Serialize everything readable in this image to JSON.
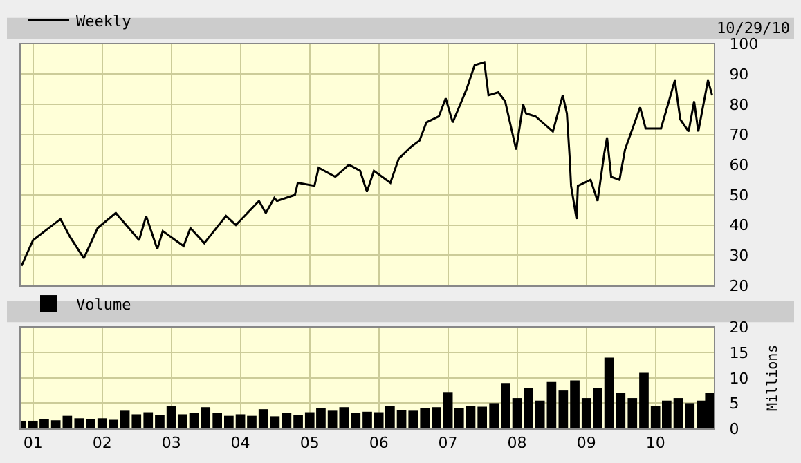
{
  "chart_data": [
    {
      "type": "line",
      "legend": "top left",
      "grid": true,
      "tick_labels": "y",
      "annotations": [
        "10/29/10"
      ],
      "x": [
        "2000-11-01",
        "2001-01-01",
        "2001-05-26",
        "2001-07-16",
        "2001-09-26",
        "2001-12-08",
        "2002-03-14",
        "2002-07-15",
        "2002-08-21",
        "2002-10-19",
        "2002-11-17",
        "2003-03-07",
        "2003-04-12",
        "2003-06-24",
        "2003-10-17",
        "2003-12-08",
        "2004-04-08",
        "2004-05-14",
        "2004-06-28",
        "2004-07-12",
        "2004-10-15",
        "2004-10-30",
        "2005-01-26",
        "2005-02-17",
        "2005-05-16",
        "2005-07-27",
        "2005-09-24",
        "2005-10-30",
        "2005-12-06",
        "2006-03-03",
        "2006-04-16",
        "2006-06-21",
        "2006-08-04",
        "2006-09-09",
        "2006-11-14",
        "2006-12-20",
        "2007-01-26",
        "2007-04-09",
        "2007-05-22",
        "2007-07-12",
        "2007-08-03",
        "2007-09-24",
        "2007-10-30",
        "2007-12-27",
        "2008-02-02",
        "2008-02-17",
        "2008-04-08",
        "2008-07-08",
        "2008-08-29",
        "2008-09-20",
        "2008-10-05",
        "2008-10-12",
        "2008-11-10",
        "2008-11-17",
        "2009-01-23",
        "2009-03-01",
        "2009-04-06",
        "2009-04-20",
        "2009-05-12",
        "2009-06-25",
        "2009-07-24",
        "2009-10-12",
        "2009-11-10",
        "2010-01-30",
        "2010-03-08",
        "2010-04-13",
        "2010-05-12",
        "2010-06-25",
        "2010-07-24",
        "2010-08-15",
        "2010-10-05",
        "2010-10-27"
      ],
      "series": [
        {
          "name": "Weekly",
          "color": "#000000",
          "values": [
            26.5,
            35,
            42,
            36,
            29,
            39,
            44,
            35,
            43,
            32,
            38,
            33,
            39,
            34,
            43,
            40,
            48,
            44,
            49,
            48,
            50,
            54,
            53,
            59,
            56,
            60,
            58,
            51,
            58,
            54,
            62,
            66,
            68,
            74,
            76,
            82,
            74,
            85,
            93,
            94,
            83,
            84,
            81,
            65,
            80,
            77,
            76,
            71,
            83,
            77,
            62,
            53,
            42,
            53,
            55,
            48,
            64,
            69,
            56,
            55,
            65,
            79,
            72,
            72,
            80,
            88,
            75,
            71,
            81,
            71,
            88,
            83
          ]
        }
      ],
      "xlim": [
        "2000-10-28",
        "2010-11-05"
      ],
      "xticks": [
        {
          "value": "2001-01-01",
          "label": null
        },
        {
          "value": "2002-01-01",
          "label": null
        },
        {
          "value": "2003-01-01",
          "label": null
        },
        {
          "value": "2004-01-01",
          "label": null
        },
        {
          "value": "2005-01-01",
          "label": null
        },
        {
          "value": "2006-01-01",
          "label": null
        },
        {
          "value": "2007-01-01",
          "label": null
        },
        {
          "value": "2008-01-01",
          "label": null
        },
        {
          "value": "2009-01-01",
          "label": null
        },
        {
          "value": "2010-01-01",
          "label": null
        }
      ],
      "ylim": [
        20,
        100
      ],
      "yticks": [
        20,
        30,
        40,
        50,
        60,
        70,
        80,
        90,
        100
      ]
    },
    {
      "type": "bar",
      "legend": "top left",
      "grid": true,
      "ylabel": "Millions",
      "x": [
        "2000-11-01",
        "2001-01-01",
        "2001-03-01",
        "2001-05-01",
        "2001-07-01",
        "2001-09-01",
        "2001-11-01",
        "2002-01-01",
        "2002-03-01",
        "2002-05-01",
        "2002-07-01",
        "2002-09-01",
        "2002-11-01",
        "2003-01-01",
        "2003-03-01",
        "2003-05-01",
        "2003-07-01",
        "2003-09-01",
        "2003-11-01",
        "2004-01-01",
        "2004-03-01",
        "2004-05-01",
        "2004-07-01",
        "2004-09-01",
        "2004-11-01",
        "2005-01-01",
        "2005-03-01",
        "2005-05-01",
        "2005-07-01",
        "2005-09-01",
        "2005-11-01",
        "2006-01-01",
        "2006-03-01",
        "2006-05-01",
        "2006-07-01",
        "2006-09-01",
        "2006-11-01",
        "2007-01-01",
        "2007-03-01",
        "2007-05-01",
        "2007-07-01",
        "2007-09-01",
        "2007-11-01",
        "2008-01-01",
        "2008-03-01",
        "2008-05-01",
        "2008-07-01",
        "2008-09-01",
        "2008-11-01",
        "2009-01-01",
        "2009-03-01",
        "2009-05-01",
        "2009-07-01",
        "2009-09-01",
        "2009-11-01",
        "2010-01-01",
        "2010-03-01",
        "2010-05-01",
        "2010-07-01",
        "2010-09-01",
        "2010-10-15"
      ],
      "series": [
        {
          "name": "Volume",
          "color": "#000000",
          "values": [
            1.5,
            1.5,
            1.8,
            1.6,
            2.5,
            2.0,
            1.8,
            2.0,
            1.7,
            3.5,
            2.8,
            3.2,
            2.6,
            4.5,
            2.8,
            3.0,
            4.2,
            3.0,
            2.5,
            2.8,
            2.5,
            3.8,
            2.4,
            3.0,
            2.6,
            3.2,
            4.0,
            3.5,
            4.2,
            3.0,
            3.3,
            3.2,
            4.5,
            3.6,
            3.5,
            4.0,
            4.2,
            7.2,
            4.0,
            4.5,
            4.3,
            5.0,
            9.0,
            6.0,
            8.0,
            5.5,
            9.2,
            7.5,
            9.5,
            6.0,
            8.0,
            14.0,
            7.0,
            6.0,
            11.0,
            4.5,
            5.5,
            6.0,
            5.0,
            5.5,
            7.0
          ]
        }
      ],
      "xlim": [
        "2000-10-28",
        "2010-11-05"
      ],
      "xticks": [
        {
          "value": "2001-01-01",
          "label": "01"
        },
        {
          "value": "2002-01-01",
          "label": "02"
        },
        {
          "value": "2003-01-01",
          "label": "03"
        },
        {
          "value": "2004-01-01",
          "label": "04"
        },
        {
          "value": "2005-01-01",
          "label": "05"
        },
        {
          "value": "2006-01-01",
          "label": "06"
        },
        {
          "value": "2007-01-01",
          "label": "07"
        },
        {
          "value": "2008-01-01",
          "label": "08"
        },
        {
          "value": "2009-01-01",
          "label": "09"
        },
        {
          "value": "2010-01-01",
          "label": "10"
        }
      ],
      "ylim": [
        0,
        20
      ],
      "yticks": [
        0,
        5,
        10,
        15,
        20
      ]
    }
  ]
}
